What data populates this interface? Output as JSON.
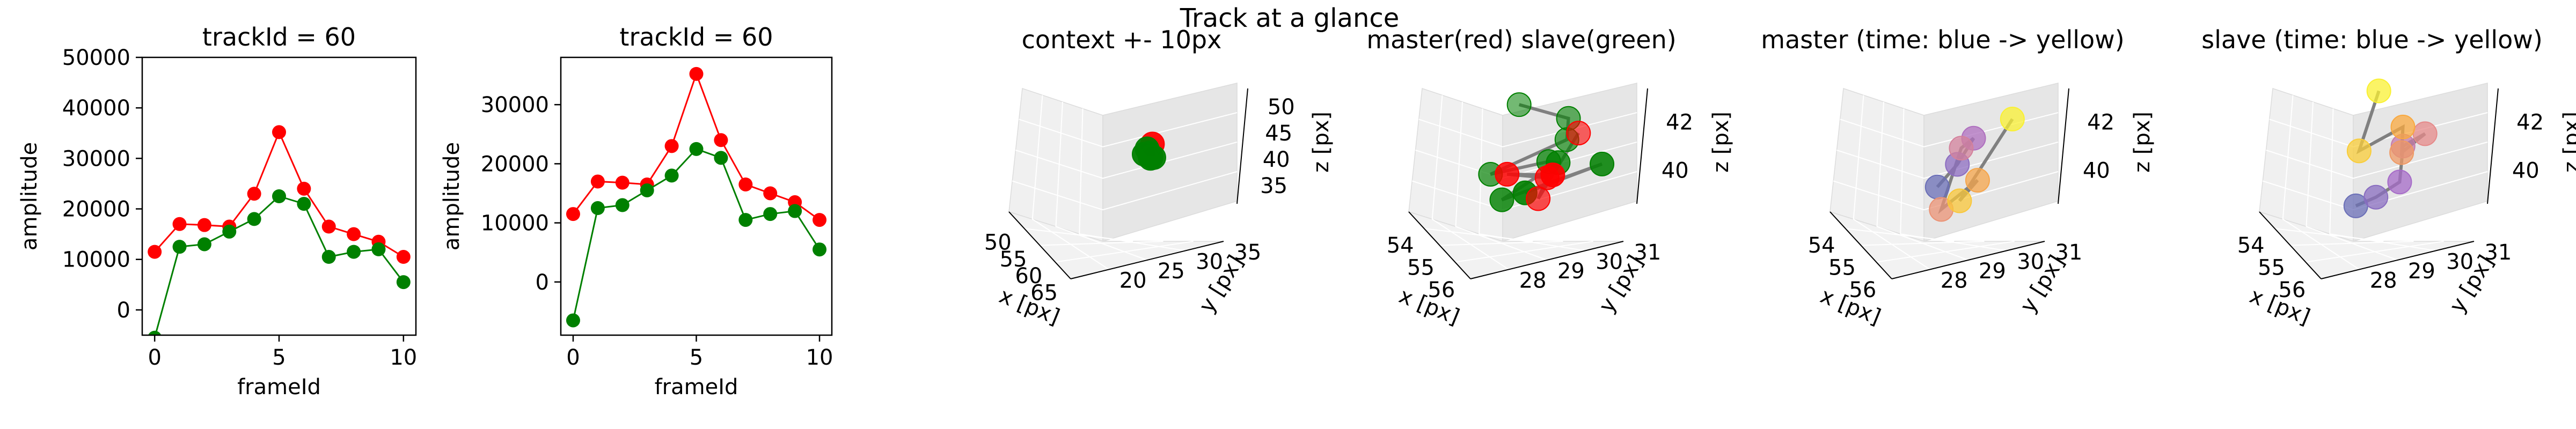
{
  "suptitle": "Track at a glance",
  "colors": {
    "master": "#ff0000",
    "slave": "#008000",
    "connector": "#808080",
    "pane_back": "#f0f0f0",
    "pane_side": "#e6e6e6",
    "time_start": "#6b6fb7",
    "time_end": "#f9f033"
  },
  "chart_data": [
    {
      "type": "line",
      "title": "trackId = 60",
      "xlabel": "frameId",
      "ylabel": "amplitude",
      "xlim": [
        -0.5,
        10.5
      ],
      "ylim": [
        -5000,
        50000
      ],
      "xticks": [
        0,
        5,
        10
      ],
      "yticks": [
        0,
        10000,
        20000,
        30000,
        40000,
        50000
      ],
      "x": [
        0,
        1,
        2,
        3,
        4,
        5,
        6,
        7,
        8,
        9,
        10
      ],
      "series": [
        {
          "color": "#ff0000",
          "values": [
            11500,
            17000,
            16800,
            16500,
            23000,
            35200,
            24000,
            16500,
            15000,
            13500,
            10500
          ]
        },
        {
          "color": "#008000",
          "values": [
            -5500,
            12500,
            13000,
            15500,
            18000,
            22500,
            21000,
            10500,
            11500,
            12000,
            5500
          ]
        }
      ]
    },
    {
      "type": "line",
      "title": "trackId = 60",
      "xlabel": "frameId",
      "ylabel": "amplitude",
      "xlim": [
        -0.5,
        10.5
      ],
      "ylim": [
        -9000,
        38000
      ],
      "xticks": [
        0,
        5,
        10
      ],
      "yticks": [
        0,
        10000,
        20000,
        30000
      ],
      "x": [
        0,
        1,
        2,
        3,
        4,
        5,
        6,
        7,
        8,
        9,
        10
      ],
      "series": [
        {
          "color": "#ff0000",
          "values": [
            11500,
            17000,
            16800,
            16500,
            23000,
            35200,
            24000,
            16500,
            15000,
            13500,
            10500
          ]
        },
        {
          "color": "#008000",
          "values": [
            -6500,
            12500,
            13000,
            15500,
            18000,
            22500,
            21000,
            10500,
            11500,
            12000,
            5500
          ]
        }
      ]
    },
    {
      "type": "scatter",
      "title": "context +- 10px",
      "xlabel": "x [px]",
      "ylabel": "y [px]",
      "zlabel": "z [px]",
      "xticks": [
        "50",
        "55",
        "60",
        "65"
      ],
      "yticks": [
        "20",
        "25",
        "30",
        "35"
      ],
      "zticks": [
        "35",
        "40",
        "45",
        "50"
      ],
      "xlim": [
        46,
        66
      ],
      "ylim": [
        19,
        37
      ],
      "zlim": [
        30,
        52
      ],
      "points": [
        {
          "x": 55.8,
          "y": 29.6,
          "z": 42.5,
          "color": "#ff0000"
        },
        {
          "x": 55.3,
          "y": 29.1,
          "z": 41.5,
          "color": "#008000"
        },
        {
          "x": 55.0,
          "y": 29.5,
          "z": 40.4,
          "color": "#008000"
        },
        {
          "x": 55.6,
          "y": 28.6,
          "z": 40.9,
          "color": "#008000"
        },
        {
          "x": 54.9,
          "y": 29.8,
          "z": 39.6,
          "color": "#008000"
        },
        {
          "x": 55.5,
          "y": 29.9,
          "z": 39.8,
          "color": "#008000"
        },
        {
          "x": 55.9,
          "y": 29.3,
          "z": 40.1,
          "color": "#008000"
        }
      ]
    },
    {
      "type": "scatter",
      "title": "master(red) slave(green)",
      "xlabel": "x [px]",
      "ylabel": "y [px]",
      "zlabel": "z [px]",
      "xticks": [
        "54",
        "55",
        "56"
      ],
      "yticks": [
        "28",
        "29",
        "30",
        "31"
      ],
      "zticks": [
        "40",
        "42"
      ],
      "xlim": [
        53.5,
        56.8
      ],
      "ylim": [
        27.6,
        31.4
      ],
      "zlim": [
        38.8,
        43.2
      ],
      "master": [
        {
          "x": 56.4,
          "y": 29.9,
          "z": 42.6
        },
        {
          "x": 55.6,
          "y": 29.2,
          "z": 39.9
        },
        {
          "x": 55.3,
          "y": 29.6,
          "z": 40.3
        },
        {
          "x": 55.1,
          "y": 28.6,
          "z": 40.6
        },
        {
          "x": 55.8,
          "y": 29.5,
          "z": 40.8
        }
      ],
      "slave": [
        {
          "x": 54.0,
          "y": 29.5,
          "z": 42.0
        },
        {
          "x": 54.7,
          "y": 30.5,
          "z": 41.7
        },
        {
          "x": 55.2,
          "y": 30.2,
          "z": 41.4
        },
        {
          "x": 54.6,
          "y": 28.4,
          "z": 40.3
        },
        {
          "x": 55.0,
          "y": 29.8,
          "z": 40.6
        },
        {
          "x": 55.7,
          "y": 29.7,
          "z": 41.1
        },
        {
          "x": 55.4,
          "y": 28.3,
          "z": 40.0
        },
        {
          "x": 56.3,
          "y": 30.6,
          "z": 41.2
        },
        {
          "x": 54.9,
          "y": 29.2,
          "z": 39.6
        }
      ]
    },
    {
      "type": "scatter",
      "title": "master (time: blue -> yellow)",
      "xlabel": "x [px]",
      "ylabel": "y [px]",
      "zlabel": "z [px]",
      "xticks": [
        "54",
        "55",
        "56"
      ],
      "yticks": [
        "28",
        "29",
        "30",
        "31"
      ],
      "zticks": [
        "40",
        "42"
      ],
      "xlim": [
        53.5,
        56.8
      ],
      "ylim": [
        27.6,
        31.4
      ],
      "zlim": [
        38.8,
        43.2
      ],
      "points": [
        {
          "x": 54.8,
          "y": 29.0,
          "z": 39.8
        },
        {
          "x": 55.1,
          "y": 29.4,
          "z": 40.7
        },
        {
          "x": 55.0,
          "y": 29.9,
          "z": 41.4
        },
        {
          "x": 55.5,
          "y": 29.3,
          "z": 41.6
        },
        {
          "x": 55.4,
          "y": 28.8,
          "z": 39.5
        },
        {
          "x": 55.6,
          "y": 29.7,
          "z": 40.4
        },
        {
          "x": 55.8,
          "y": 29.1,
          "z": 40.0
        },
        {
          "x": 56.3,
          "y": 30.3,
          "z": 42.9
        }
      ]
    },
    {
      "type": "scatter",
      "title": "slave (time: blue -> yellow)",
      "xlabel": "x [px]",
      "ylabel": "y [px]",
      "zlabel": "z [px]",
      "xticks": [
        "54",
        "55",
        "56"
      ],
      "yticks": [
        "28",
        "29",
        "30",
        "31"
      ],
      "zticks": [
        "40",
        "42"
      ],
      "xlim": [
        53.5,
        56.8
      ],
      "ylim": [
        27.6,
        31.4
      ],
      "zlim": [
        38.8,
        43.2
      ],
      "points": [
        {
          "x": 55.0,
          "y": 28.6,
          "z": 39.4
        },
        {
          "x": 55.3,
          "y": 29.0,
          "z": 39.8
        },
        {
          "x": 55.6,
          "y": 29.5,
          "z": 40.4
        },
        {
          "x": 55.2,
          "y": 29.8,
          "z": 41.3
        },
        {
          "x": 55.6,
          "y": 30.2,
          "z": 41.9
        },
        {
          "x": 55.9,
          "y": 29.4,
          "z": 41.7
        },
        {
          "x": 55.0,
          "y": 29.9,
          "z": 41.8
        },
        {
          "x": 54.4,
          "y": 29.0,
          "z": 40.8
        },
        {
          "x": 54.1,
          "y": 29.7,
          "z": 42.5
        }
      ]
    }
  ]
}
